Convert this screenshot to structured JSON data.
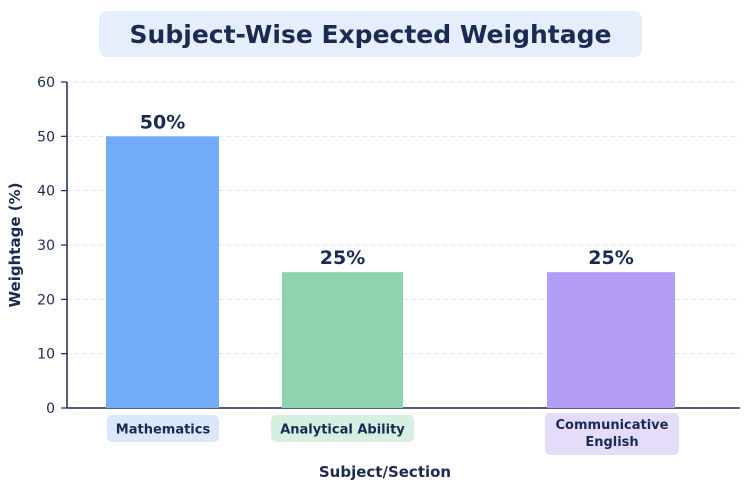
{
  "chart_data": {
    "type": "bar",
    "title": "Subject-Wise Expected Weightage",
    "xlabel": "Subject/Section",
    "ylabel": "Weightage (%)",
    "ylim": [
      0,
      60
    ],
    "yticks": [
      0,
      10,
      20,
      30,
      40,
      50,
      60
    ],
    "categories": [
      "Mathematics",
      "Analytical Ability",
      "Communicative English"
    ],
    "category_lines": [
      [
        "Mathematics"
      ],
      [
        "Analytical Ability"
      ],
      [
        "Communicative",
        "English"
      ]
    ],
    "values": [
      50,
      25,
      25
    ],
    "data_labels": [
      "50%",
      "25%",
      "25%"
    ],
    "colors": [
      "#72acf7",
      "#8fd3ae",
      "#b39df6"
    ],
    "label_bg_colors": [
      "#dbe7fb",
      "#d6efe1",
      "#e5dcfb"
    ],
    "grid": true,
    "legend": "none"
  }
}
